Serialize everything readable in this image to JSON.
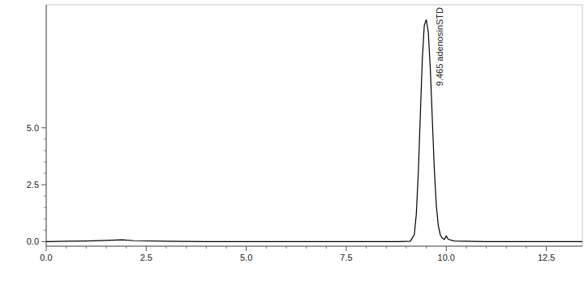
{
  "chart_data": {
    "type": "line",
    "x": [
      0,
      0.5,
      1,
      1.5,
      1.9,
      2.2,
      3,
      4,
      5,
      6,
      7,
      8,
      8.8,
      9.1,
      9.2,
      9.25,
      9.3,
      9.35,
      9.4,
      9.45,
      9.5,
      9.55,
      9.6,
      9.65,
      9.7,
      9.75,
      9.8,
      9.85,
      9.9,
      9.95,
      10.0,
      10.05,
      10.2,
      11,
      12,
      13,
      13.4
    ],
    "series": [
      {
        "name": "adenosinSTD",
        "color": "#000000",
        "values": [
          0,
          0.02,
          0.03,
          0.05,
          0.08,
          0.04,
          0.02,
          0,
          0,
          0,
          0,
          0,
          0,
          0.02,
          0.3,
          1.2,
          3.0,
          5.5,
          8.0,
          9.5,
          9.75,
          9.2,
          7.6,
          5.4,
          3.2,
          1.6,
          0.7,
          0.3,
          0.15,
          0.1,
          0.25,
          0.1,
          0.03,
          0,
          0,
          0,
          0
        ]
      }
    ],
    "xlim": [
      0,
      13.4
    ],
    "ylim": [
      -0.2,
      10.4
    ],
    "xticks": [
      {
        "value": 0,
        "label": "0.0"
      },
      2.5,
      {
        "value": 5,
        "label": "5.0"
      },
      7.5,
      {
        "value": 10,
        "label": "10.0"
      },
      12.5
    ],
    "yticks": [
      {
        "value": 0,
        "label": "0.0"
      },
      2.5,
      {
        "value": 5,
        "label": "5.0"
      }
    ],
    "annotations": [
      {
        "text": "9.465 adenosinSTD",
        "x": 9.465
      }
    ],
    "grid": false
  }
}
